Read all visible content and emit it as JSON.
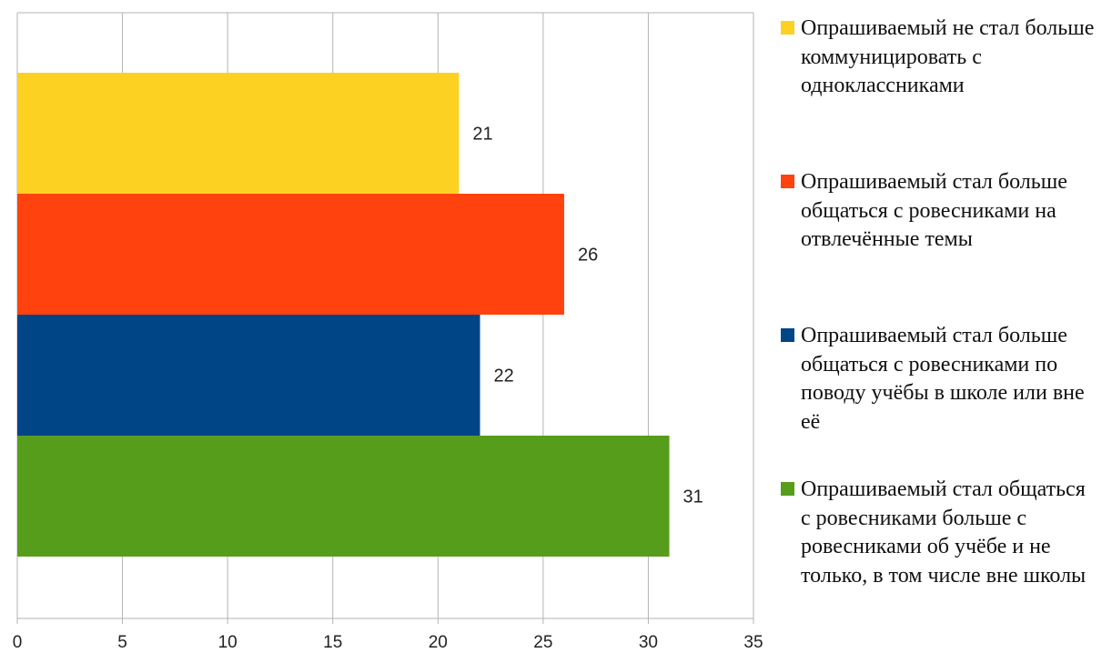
{
  "chart_data": {
    "type": "bar",
    "orientation": "horizontal",
    "categories": [
      "Опрашиваемый не стал больше коммуницировать с одноклассниками",
      "Опрашиваемый стал больше общаться с ровесниками на отвлечённые темы",
      "Опрашиваемый стал больше общаться с ровесниками по поводу учёбы в школе или вне её",
      "Опрашиваемый стал общаться с ровесниками больше с ровесниками об учёбе и не только, в том числе вне школы"
    ],
    "values": [
      21,
      26,
      22,
      31
    ],
    "colors": [
      "#fcd122",
      "#ff420e",
      "#004586",
      "#579d1c"
    ],
    "xlim": [
      0,
      35
    ],
    "xticks": [
      "0",
      "5",
      "10",
      "15",
      "20",
      "25",
      "30",
      "35"
    ],
    "grid": true,
    "legend_position": "right",
    "data_labels": true
  }
}
